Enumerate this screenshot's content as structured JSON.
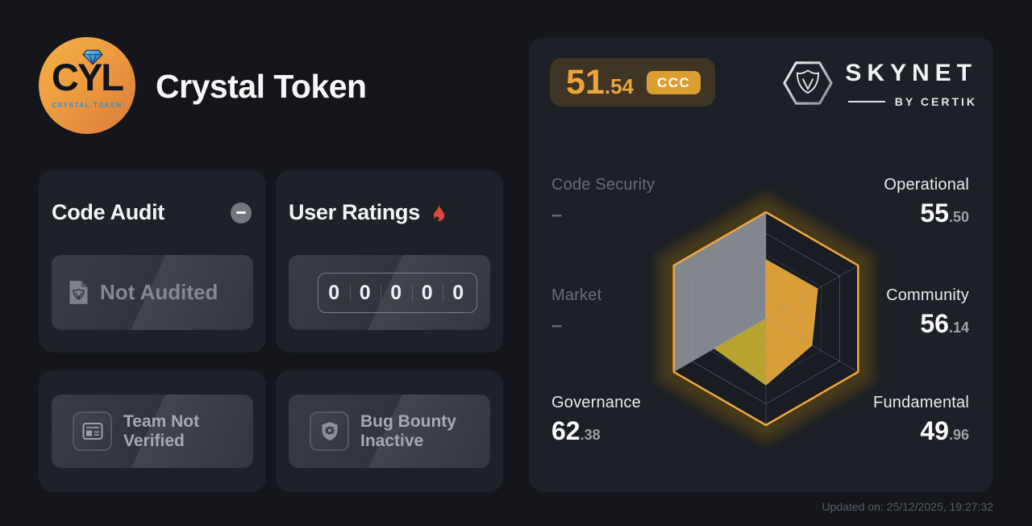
{
  "page": {
    "updated": "Updated on: 25/12/2025, 19:27:32"
  },
  "header": {
    "title": "Crystal Token",
    "logo_text": "CYL",
    "logo_subtext": "CRYSTAL TOKEN"
  },
  "cards": {
    "code_audit": {
      "title": "Code Audit",
      "status": "Not Audited"
    },
    "user_ratings": {
      "title": "User Ratings",
      "digits": [
        "0",
        "0",
        "0",
        "0",
        "0"
      ]
    },
    "team": {
      "label": "Team Not Verified"
    },
    "bug_bounty": {
      "label": "Bug Bounty Inactive"
    }
  },
  "skynet": {
    "score_int": "51",
    "score_dec": ".54",
    "grade": "CCC",
    "brand": "SKYNET",
    "brand_sub": "BY CERTIK"
  },
  "radar_labels": {
    "code_security": {
      "label": "Code Security",
      "value": "–"
    },
    "operational": {
      "label": "Operational",
      "int": "55",
      "dec": ".50"
    },
    "market": {
      "label": "Market",
      "value": "–"
    },
    "community": {
      "label": "Community",
      "int": "56",
      "dec": ".14"
    },
    "governance": {
      "label": "Governance",
      "int": "62",
      "dec": ".38"
    },
    "fundamental": {
      "label": "Fundamental",
      "int": "49",
      "dec": ".96"
    }
  },
  "chart_data": {
    "type": "radar",
    "axes": [
      "Operational",
      "Community",
      "Fundamental",
      "Governance",
      "Market",
      "Code Security"
    ],
    "values": [
      55.5,
      56.14,
      49.96,
      62.38,
      null,
      null
    ],
    "range": [
      0,
      100
    ],
    "overall_score": 51.54,
    "grade": "CCC",
    "na_display": "–",
    "grid_rings": [
      0.2,
      0.4,
      0.6,
      0.8
    ],
    "colors": {
      "accent": "#ECA53D",
      "fill": "#E1A238",
      "na_fill": "#8B8F97",
      "overlap_fill": "#B7A32F",
      "chart_bg": "#191C22"
    }
  }
}
